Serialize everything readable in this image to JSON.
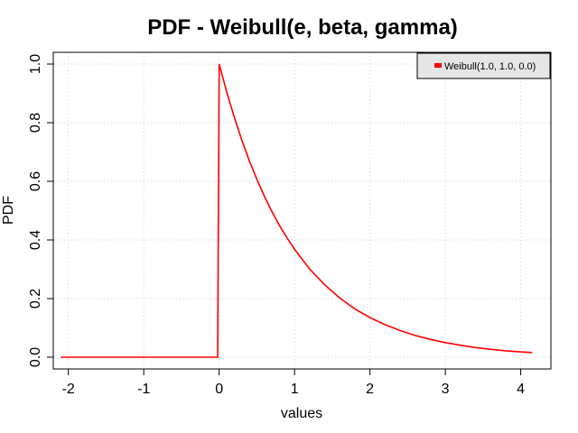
{
  "chart_data": {
    "type": "line",
    "title": "PDF - Weibull(e, beta, gamma)",
    "xlabel": "values",
    "ylabel": "PDF",
    "xlim": [
      -2.2,
      4.4
    ],
    "ylim": [
      -0.04,
      1.04
    ],
    "xticks": [
      -2,
      -1,
      0,
      1,
      2,
      3,
      4
    ],
    "yticks": [
      0.0,
      0.2,
      0.4,
      0.6,
      0.8,
      1.0
    ],
    "xtick_labels": [
      "-2",
      "-1",
      "0",
      "1",
      "2",
      "3",
      "4"
    ],
    "ytick_labels": [
      "0.0",
      "0.2",
      "0.4",
      "0.6",
      "0.8",
      "1.0"
    ],
    "grid": true,
    "legend_position": "top-right",
    "series": [
      {
        "name": "Weibull(1.0, 1.0, 0.0)",
        "color": "#ff0000",
        "x": [
          -2.1,
          -0.05,
          -0.02,
          0.0,
          0.1,
          0.2,
          0.3,
          0.4,
          0.5,
          0.6,
          0.7,
          0.8,
          0.9,
          1.0,
          1.2,
          1.4,
          1.6,
          1.8,
          2.0,
          2.2,
          2.4,
          2.6,
          2.8,
          3.0,
          3.2,
          3.4,
          3.6,
          3.8,
          4.0,
          4.15
        ],
        "y": [
          0.0,
          0.0,
          0.0,
          1.0,
          0.905,
          0.819,
          0.741,
          0.67,
          0.607,
          0.549,
          0.497,
          0.449,
          0.407,
          0.368,
          0.301,
          0.247,
          0.202,
          0.165,
          0.135,
          0.111,
          0.091,
          0.074,
          0.061,
          0.05,
          0.041,
          0.033,
          0.027,
          0.022,
          0.018,
          0.016
        ]
      }
    ]
  }
}
